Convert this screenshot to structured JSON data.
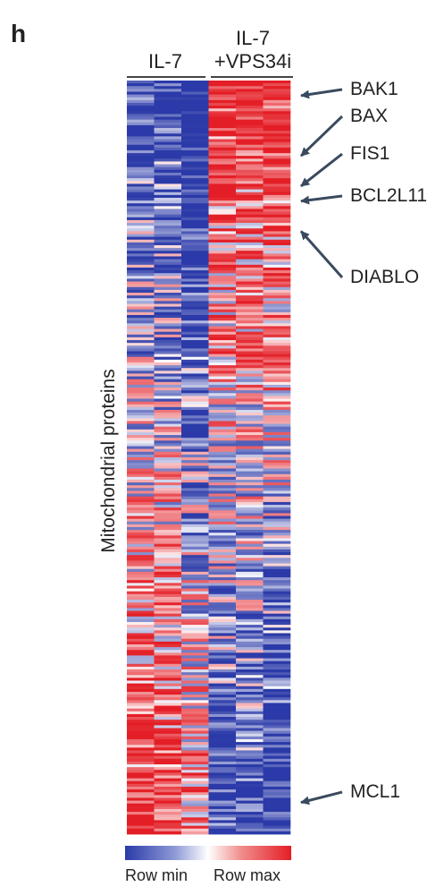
{
  "panel_letter": "h",
  "chart_data": {
    "type": "heatmap",
    "ylabel": "Mitochondrial proteins",
    "groups": [
      {
        "name": "IL-7",
        "label_lines": [
          "IL-7"
        ],
        "columns": 3
      },
      {
        "name": "IL-7 +VPS34i",
        "label_lines": [
          "IL-7",
          "+VPS34i"
        ],
        "columns": 3
      }
    ],
    "row_count": 270,
    "color_scale": {
      "min_label": "Row min",
      "max_label": "Row max",
      "min_color": "#2b3aa8",
      "mid_color": "#ffffff",
      "max_color": "#e41e26"
    },
    "annotations": [
      {
        "label": "BAK1",
        "row_fraction": 0.02
      },
      {
        "label": "BAX",
        "row_fraction": 0.1
      },
      {
        "label": "FIS1",
        "row_fraction": 0.14
      },
      {
        "label": "BCL2L11",
        "row_fraction": 0.16
      },
      {
        "label": "DIABLO",
        "row_fraction": 0.2
      },
      {
        "label": "MCL1",
        "row_fraction": 0.958
      }
    ]
  }
}
